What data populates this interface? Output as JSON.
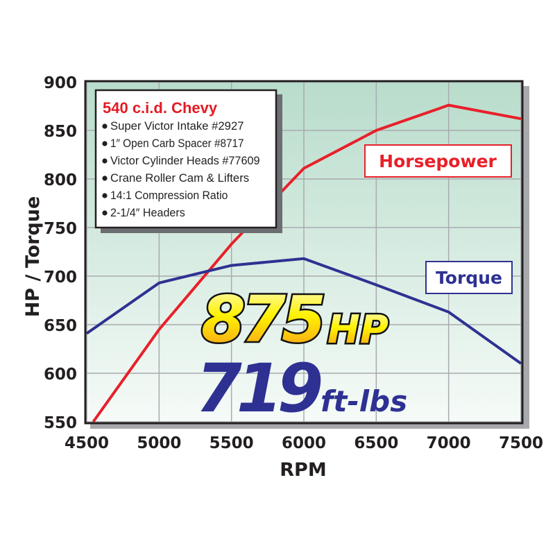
{
  "chart_data": {
    "type": "line",
    "xlabel": "RPM",
    "ylabel": "HP / Torque",
    "xlim": [
      4500,
      7500
    ],
    "ylim": [
      550,
      900
    ],
    "x_ticks": [
      "4500",
      "5000",
      "5500",
      "6000",
      "6500",
      "7000",
      "7500"
    ],
    "y_ticks": [
      "550",
      "600",
      "650",
      "700",
      "750",
      "800",
      "850",
      "900"
    ],
    "grid": true,
    "series": [
      {
        "name": "Horsepower",
        "color": "#e8202a",
        "x": [
          4545,
          5000,
          5500,
          6000,
          6500,
          7000,
          7500
        ],
        "y": [
          550,
          645,
          733,
          811,
          850,
          876,
          862
        ]
      },
      {
        "name": "Torque",
        "color": "#2e3192",
        "x": [
          4500,
          5000,
          5500,
          6000,
          6500,
          7000,
          7500
        ],
        "y": [
          641,
          693,
          711,
          718,
          691,
          663,
          610
        ]
      }
    ],
    "legend_box": {
      "title": "540 c.i.d. Chevy",
      "items": [
        "Super Victor Intake #2927",
        "1″ Open Carb Spacer #8717",
        "Victor Cylinder Heads #77609",
        "Crane Roller Cam & Lifters",
        "14:1 Compression Ratio",
        "2-1/4″ Headers"
      ]
    },
    "annotations": {
      "hp_value": "875",
      "hp_unit": "HP",
      "torque_value": "719",
      "torque_unit": "ft-lbs"
    },
    "colors": {
      "background_top": "#b8dccb",
      "background_bottom": "#f6fbf8",
      "grid": "#a9aab0"
    }
  }
}
